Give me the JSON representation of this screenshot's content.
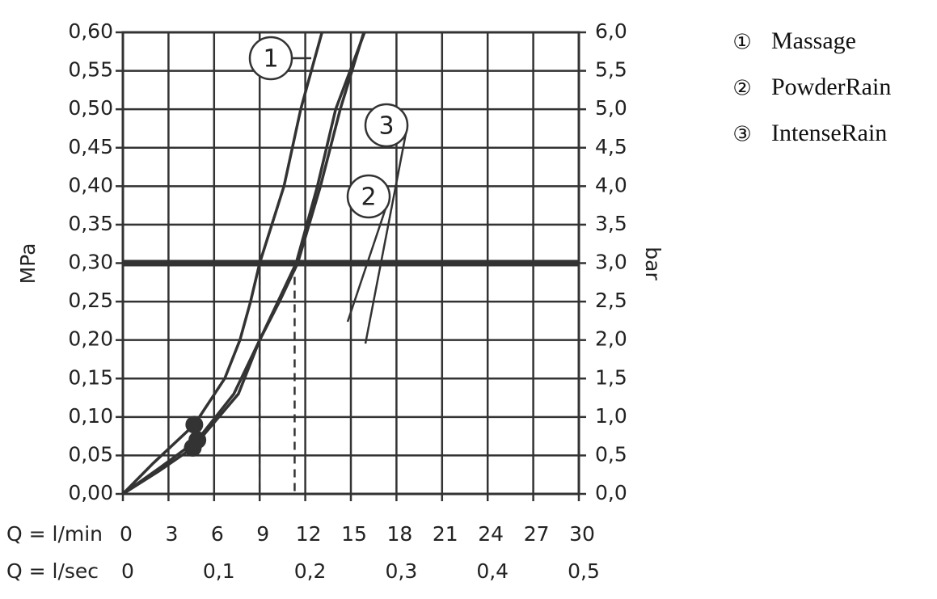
{
  "chart_data": {
    "type": "line",
    "xlabel": "Q = l/min",
    "x2label": "Q = l/sec",
    "ylabel": "MPa",
    "y2label": "bar",
    "xlim": [
      0,
      30
    ],
    "xticks": [
      0,
      3,
      6,
      9,
      12,
      15,
      18,
      21,
      24,
      27,
      30
    ],
    "x2lim": [
      0,
      0.5
    ],
    "x2ticks": [
      0,
      {
        "value": 0.1,
        "label": "0,1"
      },
      {
        "value": 0.2,
        "label": "0,2"
      },
      {
        "value": 0.3,
        "label": "0,3"
      },
      {
        "value": 0.4,
        "label": "0,4"
      },
      {
        "value": 0.5,
        "label": "0,5"
      }
    ],
    "ylim": [
      0,
      0.6
    ],
    "yticks": [
      {
        "value": 0,
        "label": "0,00"
      },
      {
        "value": 0.05,
        "label": "0,05"
      },
      {
        "value": 0.1,
        "label": "0,10"
      },
      {
        "value": 0.15,
        "label": "0,15"
      },
      {
        "value": 0.2,
        "label": "0,20"
      },
      {
        "value": 0.25,
        "label": "0,25"
      },
      {
        "value": 0.3,
        "label": "0,30"
      },
      {
        "value": 0.35,
        "label": "0,35"
      },
      {
        "value": 0.4,
        "label": "0,40"
      },
      {
        "value": 0.45,
        "label": "0,45"
      },
      {
        "value": 0.5,
        "label": "0,50"
      },
      {
        "value": 0.55,
        "label": "0,55"
      },
      {
        "value": 0.6,
        "label": "0,60"
      }
    ],
    "y2lim": [
      0,
      6
    ],
    "y2ticks": [
      {
        "value": 0,
        "label": "0,0"
      },
      {
        "value": 0.5,
        "label": "0,5"
      },
      {
        "value": 1,
        "label": "1,0"
      },
      {
        "value": 1.5,
        "label": "1,5"
      },
      {
        "value": 2,
        "label": "2,0"
      },
      {
        "value": 2.5,
        "label": "2,5"
      },
      {
        "value": 3,
        "label": "3,0"
      },
      {
        "value": 3.5,
        "label": "3,5"
      },
      {
        "value": 4,
        "label": "4,0"
      },
      {
        "value": 4.5,
        "label": "4,5"
      },
      {
        "value": 5,
        "label": "5,0"
      },
      {
        "value": 5.5,
        "label": "5,5"
      },
      {
        "value": 6,
        "label": "6,0"
      }
    ],
    "grid": true,
    "color": "#333333",
    "hline": 0.3,
    "vlines": [
      9,
      11.3
    ],
    "series": [
      {
        "name": "Massage",
        "symbol": "①",
        "label": "1",
        "color": "#333333",
        "x": [
          0,
          2,
          4.7,
          6.7,
          7.7,
          8.4,
          9,
          9.8,
          10.6,
          11.7,
          13.1
        ],
        "values": [
          0,
          0.04,
          0.09,
          0.15,
          0.2,
          0.25,
          0.3,
          0.35,
          0.4,
          0.5,
          0.6
        ],
        "marker": [
          4.7,
          0.09
        ]
      },
      {
        "name": "PowderRain",
        "symbol": "②",
        "label": "2",
        "color": "#333333",
        "x": [
          0,
          2.5,
          4.9,
          7.3,
          9,
          10.3,
          11.5,
          13,
          14.3,
          15.85
        ],
        "values": [
          0,
          0.035,
          0.07,
          0.13,
          0.2,
          0.25,
          0.3,
          0.4,
          0.5,
          0.6
        ],
        "marker": [
          4.9,
          0.07
        ]
      },
      {
        "name": "IntenseRain",
        "symbol": "③",
        "label": "3",
        "color": "#333333",
        "x": [
          0,
          2.4,
          4.6,
          7.6,
          9,
          10.2,
          11.4,
          12.8,
          14,
          15.9
        ],
        "values": [
          0,
          0.03,
          0.06,
          0.13,
          0.2,
          0.25,
          0.3,
          0.4,
          0.5,
          0.6
        ],
        "marker": [
          4.6,
          0.06
        ]
      }
    ]
  }
}
